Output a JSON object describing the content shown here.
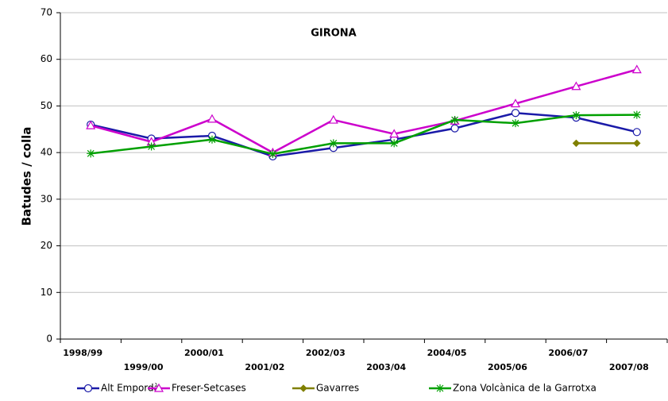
{
  "chart_data": {
    "type": "line",
    "title": "GIRONA",
    "y_label": "Batudes / colla",
    "categories": [
      "1998/99",
      "1999/00",
      "2000/01",
      "2001/02",
      "2002/03",
      "2003/04",
      "2004/05",
      "2005/06",
      "2006/07",
      "2007/08"
    ],
    "series": [
      {
        "name": "Alt Empordà",
        "color": "#1a1aa8",
        "marker": "circle",
        "values": [
          46,
          43,
          43.6,
          39.2,
          41,
          42.8,
          45.2,
          48.5,
          47.5,
          44.4
        ]
      },
      {
        "name": "Freser-Setcases",
        "color": "#cc00cc",
        "marker": "triangle",
        "values": [
          45.8,
          42.3,
          47.2,
          40,
          47,
          44,
          46.8,
          50.5,
          54.2,
          57.8
        ]
      },
      {
        "name": "Gavarres",
        "color": "#808000",
        "marker": "diamond",
        "values": [
          null,
          null,
          null,
          null,
          null,
          null,
          null,
          null,
          42,
          42
        ]
      },
      {
        "name": "Zona Volcànica de la Garrotxa",
        "color": "#00a000",
        "marker": "asterisk",
        "values": [
          39.8,
          41.3,
          42.8,
          39.7,
          42,
          42,
          47,
          46.3,
          48,
          48.1
        ]
      }
    ],
    "ylim": [
      0,
      70
    ],
    "yticks": [
      0,
      10,
      20,
      30,
      40,
      50,
      60,
      70
    ],
    "grid": true,
    "legend": "bottom"
  }
}
